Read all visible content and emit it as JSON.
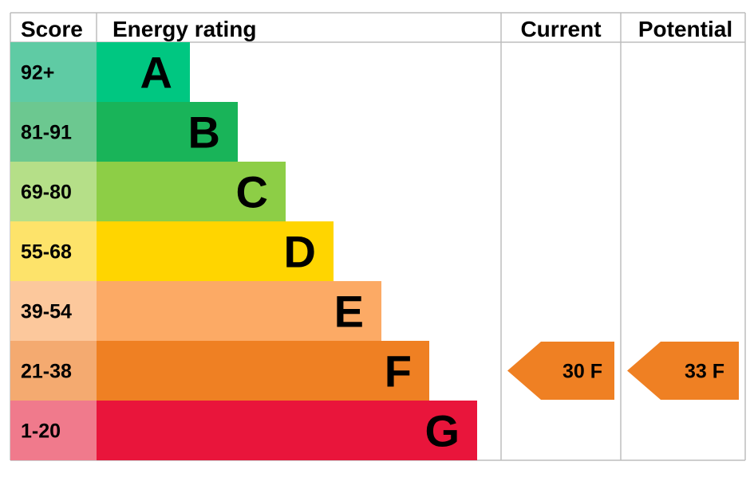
{
  "chart_data": {
    "type": "table",
    "headers": {
      "score": "Score",
      "rating": "Energy rating",
      "current": "Current",
      "potential": "Potential"
    },
    "bands": [
      {
        "score_range": "92+",
        "letter": "A",
        "min": 92,
        "max": 100,
        "color": "#00c781",
        "score_color": "#5fcba4"
      },
      {
        "score_range": "81-91",
        "letter": "B",
        "min": 81,
        "max": 91,
        "color": "#19b459",
        "score_color": "#6cc890"
      },
      {
        "score_range": "69-80",
        "letter": "C",
        "min": 69,
        "max": 80,
        "color": "#8dce46",
        "score_color": "#b5df88"
      },
      {
        "score_range": "55-68",
        "letter": "D",
        "min": 55,
        "max": 68,
        "color": "#ffd500",
        "score_color": "#fde36a"
      },
      {
        "score_range": "39-54",
        "letter": "E",
        "min": 39,
        "max": 54,
        "color": "#fcaa65",
        "score_color": "#fcc89c"
      },
      {
        "score_range": "21-38",
        "letter": "F",
        "min": 21,
        "max": 38,
        "color": "#ef8023",
        "score_color": "#f4aa70"
      },
      {
        "score_range": "1-20",
        "letter": "G",
        "min": 1,
        "max": 20,
        "color": "#e9153b",
        "score_color": "#f07a8c"
      }
    ],
    "current": {
      "score": 30,
      "band": "F",
      "label": "30  F",
      "color": "#ef8023"
    },
    "potential": {
      "score": 33,
      "band": "F",
      "label": "33  F",
      "color": "#ef8023"
    }
  }
}
